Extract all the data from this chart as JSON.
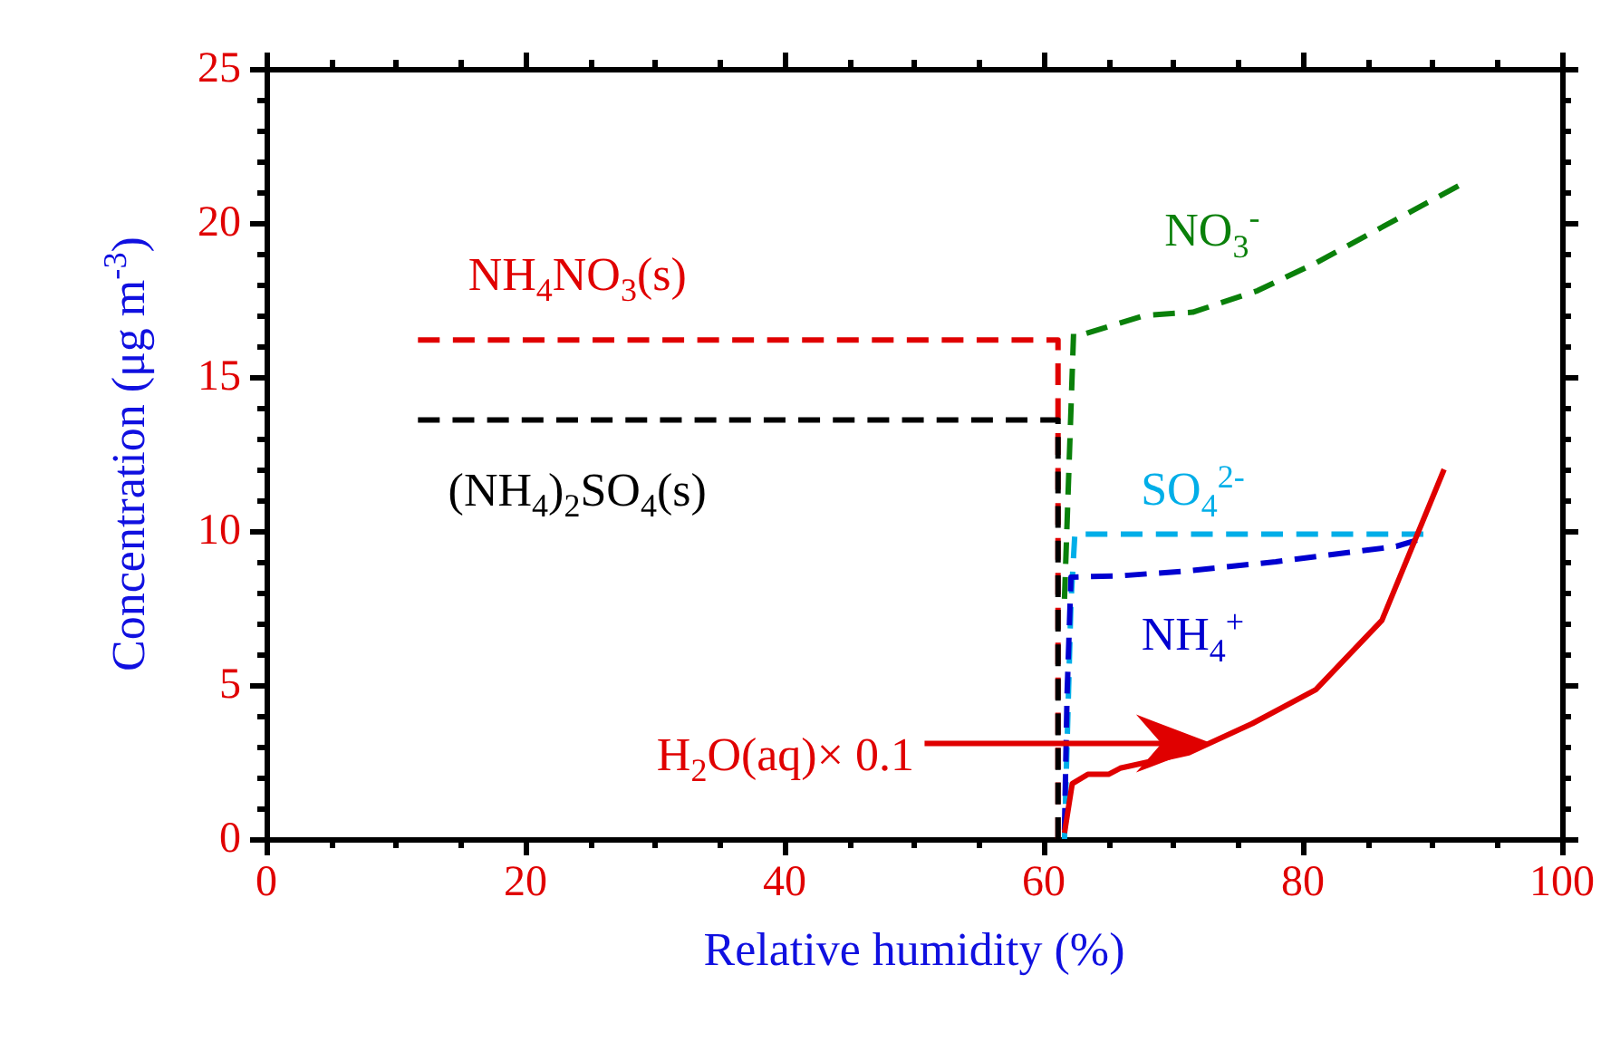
{
  "chart_data": {
    "type": "line",
    "xlabel": "Relative humidity (%)",
    "ylabel": "Concentration (μg m$^{-3}$)",
    "xlim": [
      0,
      100
    ],
    "xticks": [
      0,
      20,
      40,
      60,
      80,
      100
    ],
    "ylim": [
      0,
      25
    ],
    "yticks": [
      0,
      5,
      10,
      15,
      20,
      25
    ],
    "grid": false,
    "marker": "none",
    "series": [
      {
        "name": "NH$_{4}$NO$_{3}$(s)",
        "color": "#e00000",
        "line_style": "dashed",
        "x": [
          11.7,
          61.1,
          61.1
        ],
        "values": [
          16.2,
          16.2,
          0
        ]
      },
      {
        "name": "(NH$_{4}$)$_{2}$SO$_{4}$(s)",
        "color": "#000000",
        "line_style": "dashed",
        "x": [
          11.7,
          61.1,
          61.1
        ],
        "values": [
          13.6,
          13.6,
          0
        ]
      },
      {
        "name": "NO$_{3}$$^{-}$",
        "color": "#0a800a",
        "line_style": "dashed",
        "x": [
          61.6,
          62.3,
          63.2,
          67.8,
          71.5,
          76.5,
          81,
          92
        ],
        "values": [
          7.8,
          16.4,
          16.4,
          17.0,
          17.1,
          17.8,
          18.7,
          21.2
        ]
      },
      {
        "name": "SO$_{4}$$^{2-}$",
        "color": "#00aee8",
        "line_style": "dashed",
        "x": [
          61.6,
          62.1,
          62.4,
          89.3
        ],
        "values": [
          0,
          7.7,
          9.9,
          9.9
        ]
      },
      {
        "name": "NH$_{4}$$^{+}$",
        "color": "#0000d0",
        "line_style": "dashed",
        "x": [
          61.6,
          61.8,
          62.1,
          66.1,
          71,
          77.9,
          87.2,
          88.8
        ],
        "values": [
          0.3,
          4.7,
          8.5,
          8.55,
          8.7,
          9.0,
          9.5,
          9.7
        ]
      },
      {
        "name": "H$_{2}$O(aq)× 0.1",
        "color": "#e00000",
        "line_style": "solid",
        "x": [
          61.6,
          62.2,
          63.4,
          65,
          65.9,
          71.2,
          76.1,
          81,
          86.1,
          90.9
        ],
        "values": [
          0.2,
          1.8,
          2.1,
          2.1,
          2.3,
          2.8,
          3.75,
          4.85,
          7.1,
          12.0
        ]
      }
    ]
  }
}
